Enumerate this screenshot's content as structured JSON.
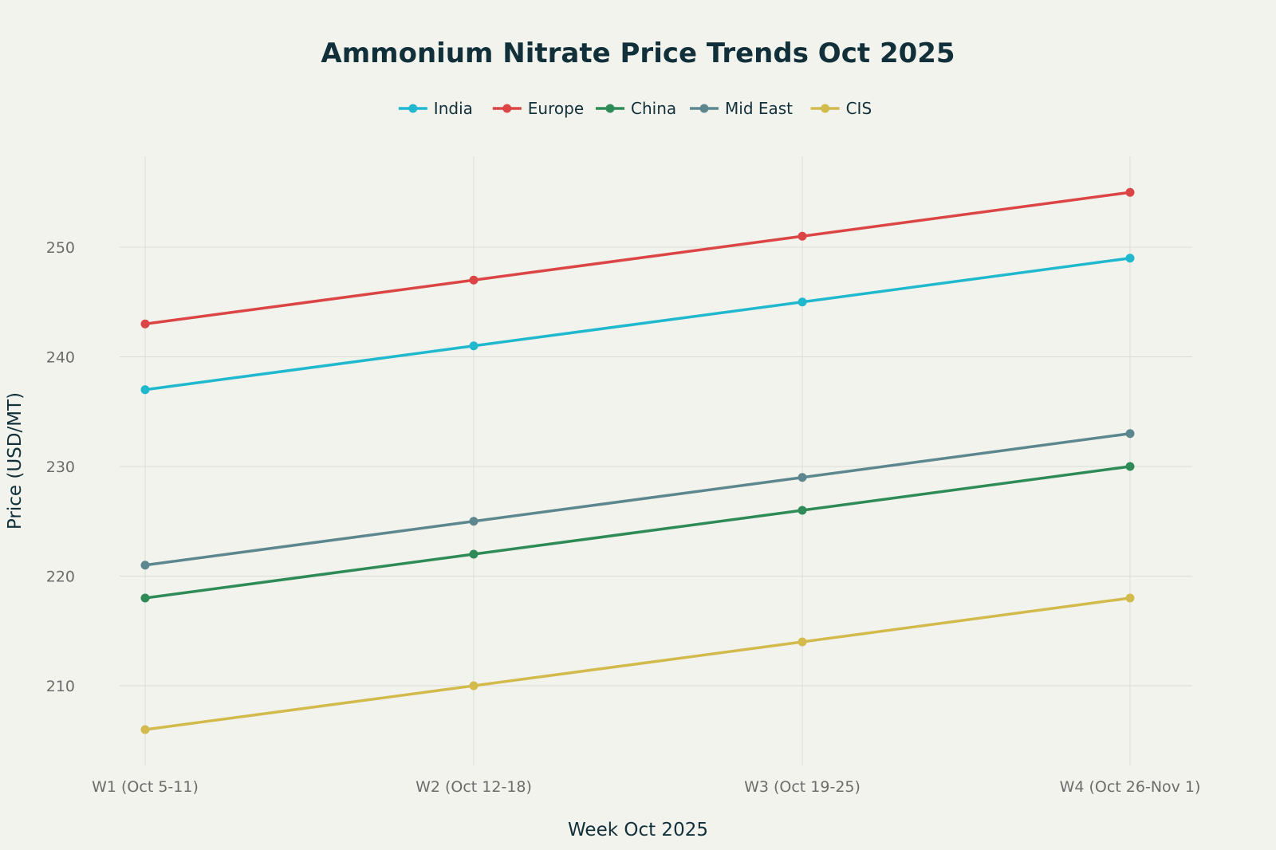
{
  "chart_data": {
    "type": "line",
    "title": "Ammonium Nitrate Price Trends Oct 2025",
    "xlabel": "Week Oct 2025",
    "ylabel": "Price (USD/MT)",
    "categories": [
      "W1 (Oct 5-11)",
      "W2 (Oct 12-18)",
      "W3 (Oct 19-25)",
      "W4 (Oct 26-Nov 1)"
    ],
    "ylim": [
      202,
      258
    ],
    "yticks": [
      210,
      220,
      230,
      240,
      250
    ],
    "grid": true,
    "legend_position": "top-center",
    "series": [
      {
        "name": "India",
        "color": "#1fb8cd",
        "values": [
          237,
          241,
          245,
          249
        ]
      },
      {
        "name": "Europe",
        "color": "#db4545",
        "values": [
          243,
          247,
          251,
          255
        ]
      },
      {
        "name": "China",
        "color": "#2e8b57",
        "values": [
          218,
          222,
          226,
          230
        ]
      },
      {
        "name": "Mid East",
        "color": "#5d878f",
        "values": [
          221,
          225,
          229,
          233
        ]
      },
      {
        "name": "CIS",
        "color": "#d2ba4c",
        "values": [
          206,
          210,
          214,
          218
        ]
      }
    ]
  }
}
